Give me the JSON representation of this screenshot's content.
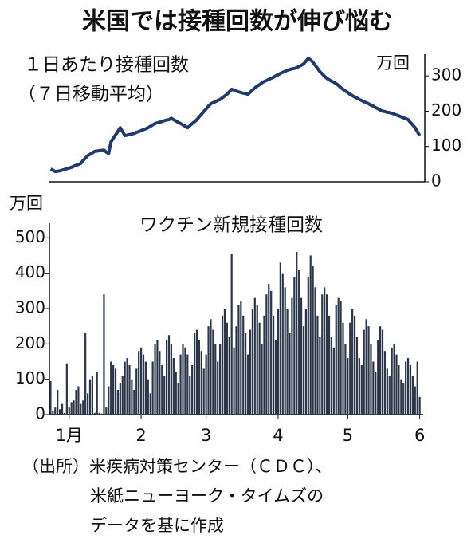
{
  "title": "米国では接種回数が伸び悩む",
  "chart_data": [
    {
      "type": "line",
      "title": "１日あたり接種回数",
      "subtitle": "（７日移動平均）",
      "y_unit": "万回",
      "color": "#1f3a6b",
      "axis_side": "right",
      "ylim": [
        0,
        350
      ],
      "yticks": [
        0,
        100,
        200,
        300
      ],
      "values": [
        36,
        33,
        29,
        30,
        31,
        33,
        35,
        37,
        39,
        41,
        44,
        47,
        49,
        52,
        60,
        67,
        74,
        78,
        82,
        86,
        87,
        88,
        89,
        90,
        84,
        80,
        113,
        123,
        133,
        143,
        153,
        142,
        131,
        132,
        134,
        135,
        137,
        140,
        142,
        145,
        148,
        150,
        153,
        157,
        161,
        165,
        167,
        169,
        171,
        173,
        175,
        176,
        180,
        176,
        172,
        168,
        165,
        161,
        157,
        153,
        159,
        165,
        170,
        176,
        184,
        191,
        199,
        206,
        214,
        221,
        224,
        227,
        230,
        233,
        238,
        243,
        248,
        255,
        262,
        260,
        257,
        255,
        253,
        251,
        250,
        248,
        254,
        260,
        266,
        271,
        275,
        280,
        284,
        287,
        290,
        293,
        296,
        300,
        303,
        307,
        310,
        313,
        316,
        318,
        320,
        321,
        323,
        327,
        330,
        334,
        342,
        350,
        345,
        339,
        330,
        321,
        312,
        306,
        299,
        293,
        289,
        285,
        282,
        278,
        273,
        267,
        262,
        257,
        253,
        248,
        244,
        240,
        237,
        233,
        230,
        227,
        224,
        221,
        217,
        214,
        210,
        207,
        203,
        200,
        199,
        197,
        196,
        194,
        192,
        189,
        187,
        184,
        181,
        179,
        176,
        168,
        161,
        153,
        142,
        131
      ]
    },
    {
      "type": "bar",
      "title": "ワクチン新規接種回数",
      "y_unit": "万回",
      "color": "#2b3648",
      "axis_side": "left",
      "ylim": [
        0,
        530
      ],
      "yticks": [
        0,
        100,
        200,
        300,
        400,
        500
      ],
      "xticks": [
        {
          "value": 8,
          "label": "1月"
        },
        {
          "value": 39,
          "label": "2"
        },
        {
          "value": 67,
          "label": "3"
        },
        {
          "value": 98,
          "label": "4"
        },
        {
          "value": 128,
          "label": "5"
        },
        {
          "value": 159,
          "label": "6"
        }
      ],
      "values": [
        95,
        10,
        20,
        70,
        15,
        30,
        5,
        145,
        20,
        35,
        40,
        70,
        80,
        30,
        40,
        230,
        60,
        100,
        110,
        5,
        120,
        5,
        3,
        340,
        20,
        80,
        150,
        140,
        130,
        70,
        90,
        110,
        150,
        160,
        140,
        100,
        70,
        130,
        180,
        190,
        170,
        150,
        100,
        60,
        150,
        200,
        210,
        180,
        140,
        110,
        210,
        225,
        200,
        160,
        120,
        90,
        170,
        200,
        190,
        170,
        110,
        140,
        230,
        240,
        210,
        180,
        130,
        170,
        250,
        270,
        240,
        200,
        150,
        200,
        280,
        300,
        260,
        220,
        455,
        190,
        250,
        310,
        320,
        280,
        230,
        170,
        240,
        300,
        330,
        310,
        260,
        200,
        280,
        340,
        370,
        350,
        280,
        210,
        300,
        430,
        400,
        360,
        300,
        230,
        330,
        390,
        460,
        410,
        330,
        250,
        300,
        390,
        450,
        420,
        360,
        280,
        220,
        340,
        360,
        340,
        280,
        220,
        190,
        310,
        330,
        320,
        260,
        200,
        160,
        260,
        300,
        280,
        220,
        160,
        140,
        240,
        270,
        250,
        200,
        150,
        120,
        210,
        250,
        240,
        180,
        130,
        110,
        190,
        200,
        170,
        140,
        100,
        90,
        150,
        160,
        140,
        110,
        80,
        150,
        50
      ]
    }
  ],
  "source": [
    "（出所）米疾病対策センター（ＣＤＣ）、",
    "米紙ニューヨーク・タイムズの",
    "データを基に作成"
  ]
}
